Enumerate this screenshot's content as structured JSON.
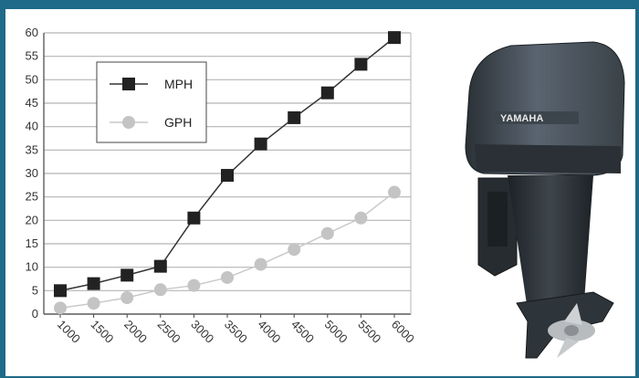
{
  "chart_data": {
    "type": "line",
    "x": [
      "1000",
      "1500",
      "2000",
      "2500",
      "3000",
      "3500",
      "4000",
      "4500",
      "5000",
      "5500",
      "6000"
    ],
    "series": [
      {
        "name": "MPH",
        "values": [
          5,
          6.5,
          8.3,
          10.2,
          20.5,
          29.6,
          36.3,
          41.9,
          47.2,
          53.3,
          59
        ],
        "color": "#222222",
        "marker": "square"
      },
      {
        "name": "GPH",
        "values": [
          1.3,
          2.3,
          3.5,
          5.2,
          6.1,
          7.8,
          10.6,
          13.8,
          17.2,
          20.5,
          26
        ],
        "color": "#c4c4c4",
        "marker": "circle"
      }
    ],
    "yticks": [
      0,
      5,
      10,
      15,
      20,
      25,
      30,
      35,
      40,
      45,
      50,
      55,
      60
    ],
    "ylim": [
      0,
      60
    ],
    "grid": true,
    "legend_position": "top-left"
  },
  "image": {
    "brand_text": "YAMAHA",
    "icon": "outboard-motor-image"
  }
}
